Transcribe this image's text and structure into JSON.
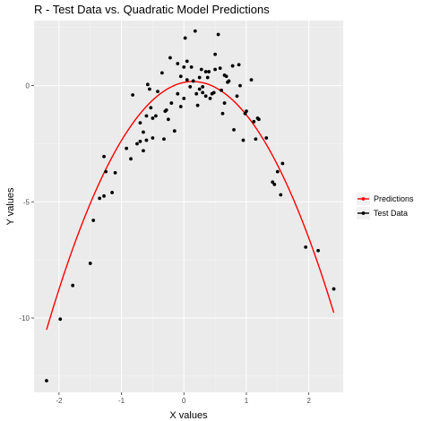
{
  "chart_data": {
    "type": "scatter",
    "title": "R - Test Data vs. Quadratic Model Predictions",
    "xlabel": "X values",
    "ylabel": "Y values",
    "xlim": [
      -2.4,
      2.55
    ],
    "ylim": [
      -13.2,
      2.8
    ],
    "x_ticks": [
      -2,
      -1,
      0,
      1,
      2
    ],
    "y_ticks": [
      0,
      -5,
      -10
    ],
    "x_tick_labels": [
      "-2",
      "-1",
      "0",
      "1",
      "2"
    ],
    "y_tick_labels": [
      "0",
      "-5",
      "-10"
    ],
    "grid": true,
    "legend_position": "right",
    "background": "#ebebeb",
    "series": [
      {
        "name": "Predictions",
        "kind": "line",
        "color": "#ff0000",
        "x_range": [
          -2.2,
          2.4
        ],
        "coefficients": {
          "a": -1.95,
          "b": 0.55,
          "c": 0.14
        }
      },
      {
        "name": "Test Data",
        "kind": "points",
        "color": "#000000",
        "points": [
          [
            -2.2,
            -12.7
          ],
          [
            -1.98,
            -10.05
          ],
          [
            -1.78,
            -8.6
          ],
          [
            -1.5,
            -7.65
          ],
          [
            -1.45,
            -5.8
          ],
          [
            -1.35,
            -4.85
          ],
          [
            -1.28,
            -4.75
          ],
          [
            -1.28,
            -3.05
          ],
          [
            -1.25,
            -3.7
          ],
          [
            -1.15,
            -4.6
          ],
          [
            -1.1,
            -3.75
          ],
          [
            -0.92,
            -2.7
          ],
          [
            -0.85,
            -3.15
          ],
          [
            -0.82,
            -0.4
          ],
          [
            -0.75,
            -2.5
          ],
          [
            -0.7,
            -2.4
          ],
          [
            -0.7,
            -1.6
          ],
          [
            -0.65,
            -2.0
          ],
          [
            -0.65,
            -2.8
          ],
          [
            -0.6,
            -1.3
          ],
          [
            -0.6,
            -2.35
          ],
          [
            -0.58,
            0.05
          ],
          [
            -0.55,
            -0.15
          ],
          [
            -0.53,
            -0.95
          ],
          [
            -0.5,
            -2.25
          ],
          [
            -0.5,
            -1.4
          ],
          [
            -0.45,
            -1.3
          ],
          [
            -0.42,
            -0.25
          ],
          [
            -0.35,
            0.55
          ],
          [
            -0.32,
            -2.3
          ],
          [
            -0.3,
            -1.1
          ],
          [
            -0.28,
            -1.05
          ],
          [
            -0.25,
            -1.45
          ],
          [
            -0.22,
            1.2
          ],
          [
            -0.2,
            -0.75
          ],
          [
            -0.15,
            -1.95
          ],
          [
            -0.1,
            -0.35
          ],
          [
            -0.1,
            0.95
          ],
          [
            -0.05,
            -0.9
          ],
          [
            -0.05,
            0.4
          ],
          [
            0.0,
            -0.55
          ],
          [
            0.0,
            0.8
          ],
          [
            0.02,
            2.05
          ],
          [
            0.05,
            1.05
          ],
          [
            0.05,
            0.25
          ],
          [
            0.1,
            -0.05
          ],
          [
            0.12,
            0.8
          ],
          [
            0.15,
            0.2
          ],
          [
            0.18,
            2.35
          ],
          [
            0.2,
            -0.35
          ],
          [
            0.22,
            -0.85
          ],
          [
            0.25,
            0.35
          ],
          [
            0.25,
            -0.15
          ],
          [
            0.28,
            0.7
          ],
          [
            0.3,
            -0.05
          ],
          [
            0.3,
            -0.3
          ],
          [
            0.35,
            0.6
          ],
          [
            0.35,
            -0.45
          ],
          [
            0.38,
            0.35
          ],
          [
            0.4,
            0.6
          ],
          [
            0.42,
            -0.55
          ],
          [
            0.45,
            -0.35
          ],
          [
            0.48,
            -0.3
          ],
          [
            0.5,
            1.35
          ],
          [
            0.5,
            0.7
          ],
          [
            0.55,
            2.2
          ],
          [
            0.58,
            0.75
          ],
          [
            0.6,
            -0.2
          ],
          [
            0.62,
            -1.2
          ],
          [
            0.65,
            0.45
          ],
          [
            0.65,
            -0.75
          ],
          [
            0.68,
            0.4
          ],
          [
            0.7,
            0.15
          ],
          [
            0.72,
            0.2
          ],
          [
            0.78,
            0.85
          ],
          [
            0.8,
            -1.9
          ],
          [
            0.85,
            -0.45
          ],
          [
            0.88,
            0.9
          ],
          [
            0.9,
            0.0
          ],
          [
            0.95,
            -2.35
          ],
          [
            0.98,
            -1.2
          ],
          [
            1.0,
            -1.1
          ],
          [
            1.08,
            0.25
          ],
          [
            1.12,
            -1.55
          ],
          [
            1.15,
            -2.3
          ],
          [
            1.18,
            -1.4
          ],
          [
            1.2,
            -1.45
          ],
          [
            1.32,
            -2.25
          ],
          [
            1.42,
            -4.15
          ],
          [
            1.45,
            -4.25
          ],
          [
            1.5,
            -3.7
          ],
          [
            1.55,
            -4.7
          ],
          [
            1.58,
            -3.35
          ],
          [
            1.95,
            -6.95
          ],
          [
            2.15,
            -7.1
          ],
          [
            2.4,
            -8.75
          ]
        ]
      }
    ]
  }
}
